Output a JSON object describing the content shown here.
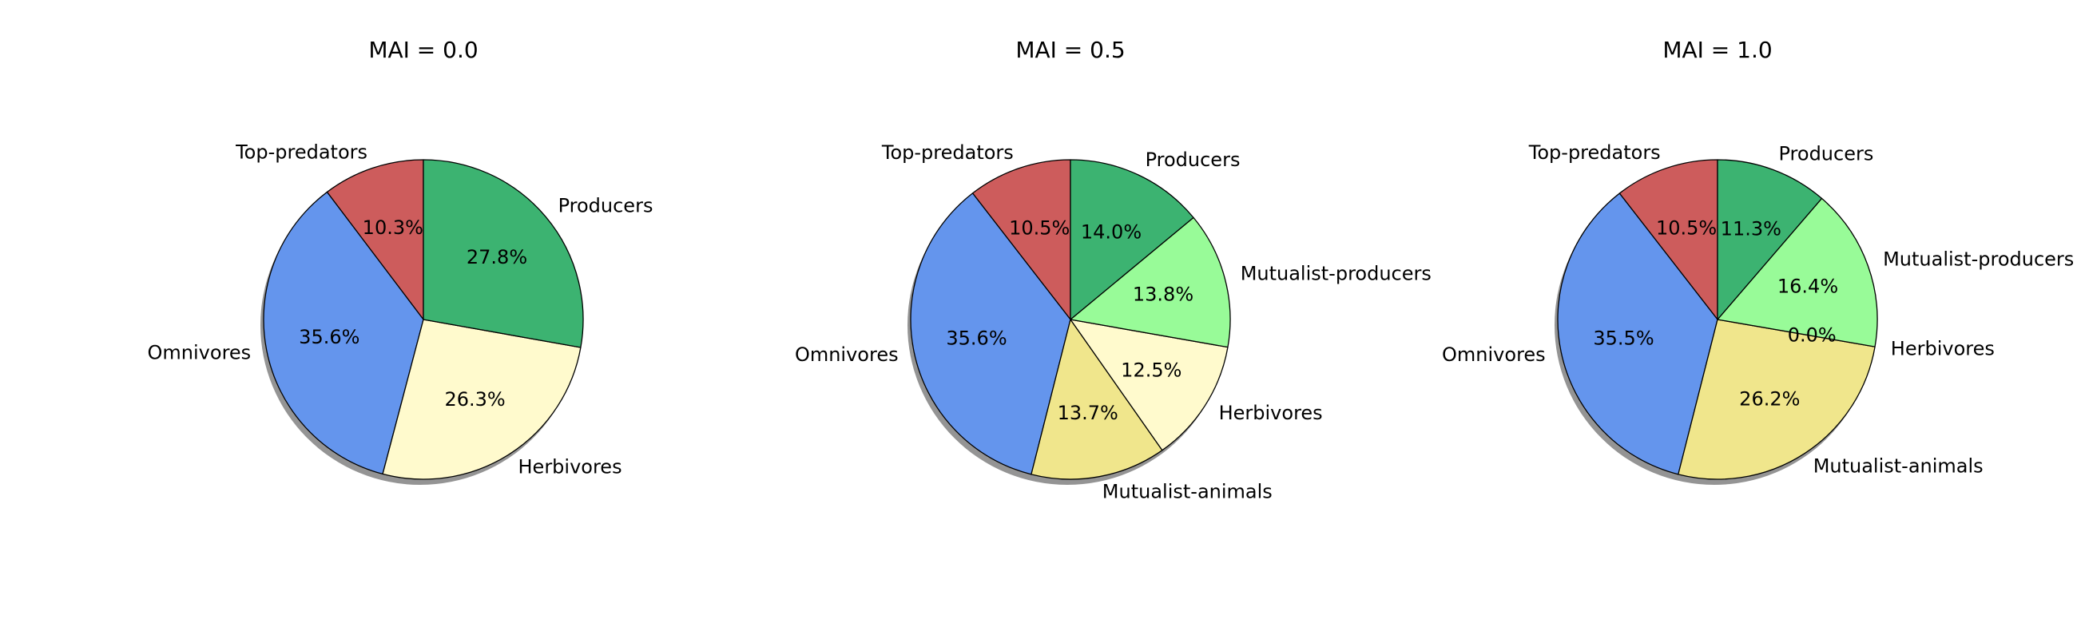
{
  "chart_data": [
    {
      "type": "pie",
      "title": "MAI = 0.0",
      "labels": [
        "Top-predators",
        "Omnivores",
        "Herbivores",
        "Producers"
      ],
      "values": [
        10.3,
        35.6,
        26.3,
        27.8
      ],
      "pct_labels": [
        "10.3%",
        "35.6%",
        "26.3%",
        "27.8%"
      ],
      "colors": [
        "#cd5c5c",
        "#6495ed",
        "#fffacd",
        "#3cb371"
      ],
      "shadow": true
    },
    {
      "type": "pie",
      "title": "MAI = 0.5",
      "labels": [
        "Top-predators",
        "Omnivores",
        "Mutualist-animals",
        "Herbivores",
        "Mutualist-producers",
        "Producers"
      ],
      "values": [
        10.5,
        35.6,
        13.7,
        12.5,
        13.8,
        14.0
      ],
      "pct_labels": [
        "10.5%",
        "35.6%",
        "13.7%",
        "12.5%",
        "13.8%",
        "14.0%"
      ],
      "colors": [
        "#cd5c5c",
        "#6495ed",
        "#f0e68c",
        "#fffacd",
        "#98fb98",
        "#3cb371"
      ],
      "shadow": true
    },
    {
      "type": "pie",
      "title": "MAI = 1.0",
      "labels": [
        "Top-predators",
        "Omnivores",
        "Mutualist-animals",
        "Herbivores",
        "Mutualist-producers",
        "Producers"
      ],
      "values": [
        10.5,
        35.5,
        26.2,
        0.0,
        16.4,
        11.3
      ],
      "pct_labels": [
        "10.5%",
        "35.5%",
        "26.2%",
        "0.0%",
        "16.4%",
        "11.3%"
      ],
      "colors": [
        "#cd5c5c",
        "#6495ed",
        "#f0e68c",
        "#fffacd",
        "#98fb98",
        "#3cb371"
      ],
      "shadow": true
    }
  ]
}
